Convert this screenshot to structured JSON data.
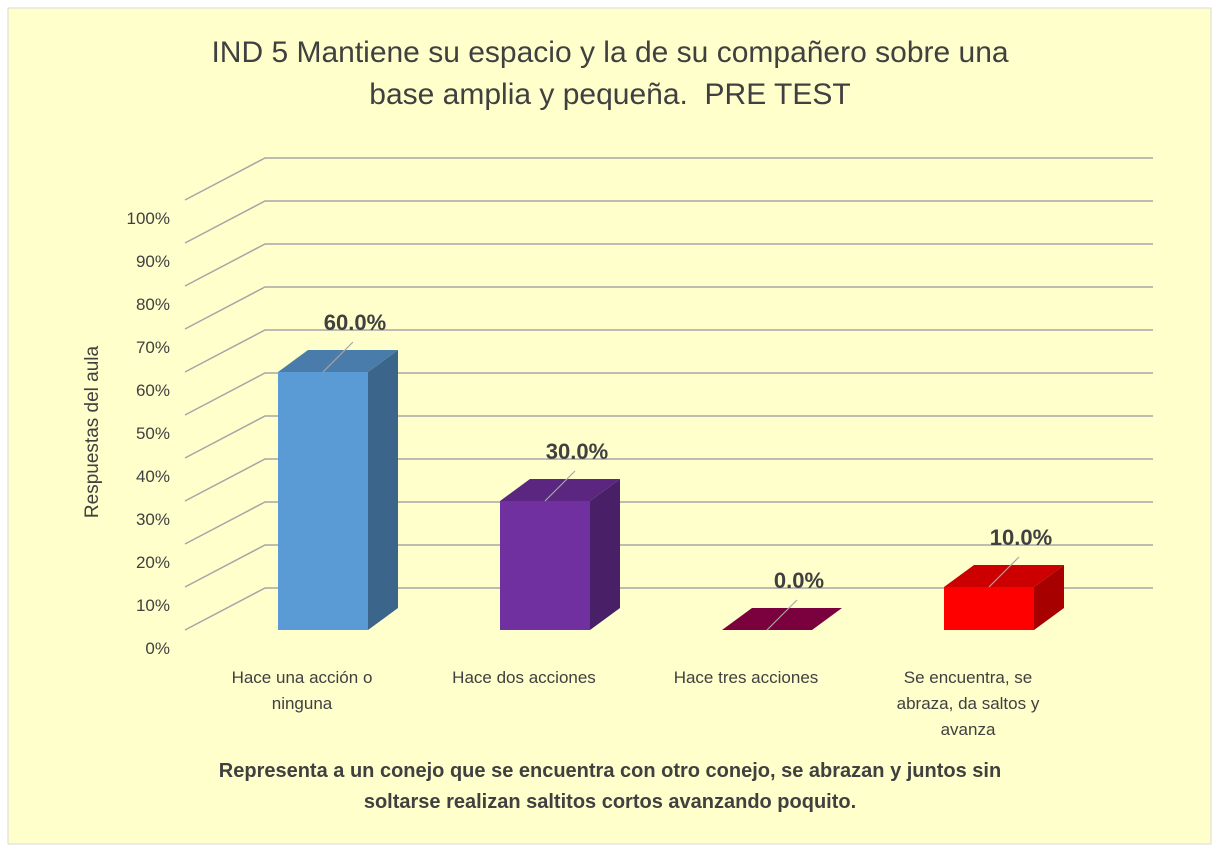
{
  "chart_data": {
    "type": "bar3d",
    "title": "IND 5 Mantiene su espacio y la de su compañero sobre una base amplia y pequeña.  PRE TEST",
    "y_label": "Respuestas del aula",
    "x_label": "Representa a un conejo que se encuentra con otro conejo, se abrazan y juntos sin soltarse realizan saltitos cortos avanzando poquito.",
    "categories": [
      "Hace una acción o ninguna",
      "Hace dos acciones",
      "Hace tres acciones",
      "Se encuentra, se abraza, da saltos y avanza"
    ],
    "values": [
      60,
      30,
      0,
      10
    ],
    "value_labels": [
      "60.0%",
      "30.0%",
      "0.0%",
      "10.0%"
    ],
    "colors": [
      "#5b9bd5",
      "#7030a0",
      "#99004d",
      "#ff0000"
    ],
    "ylim": [
      0,
      100
    ],
    "yticks": [
      {
        "value": 0,
        "label": "0%"
      },
      {
        "value": 10,
        "label": "10%"
      },
      {
        "value": 20,
        "label": "20%"
      },
      {
        "value": 30,
        "label": "30%"
      },
      {
        "value": 40,
        "label": "40%"
      },
      {
        "value": 50,
        "label": "50%"
      },
      {
        "value": 60,
        "label": "60%"
      },
      {
        "value": 70,
        "label": "70%"
      },
      {
        "value": 80,
        "label": "80%"
      },
      {
        "value": 90,
        "label": "90%"
      },
      {
        "value": 100,
        "label": "100%"
      }
    ],
    "grid": true
  }
}
